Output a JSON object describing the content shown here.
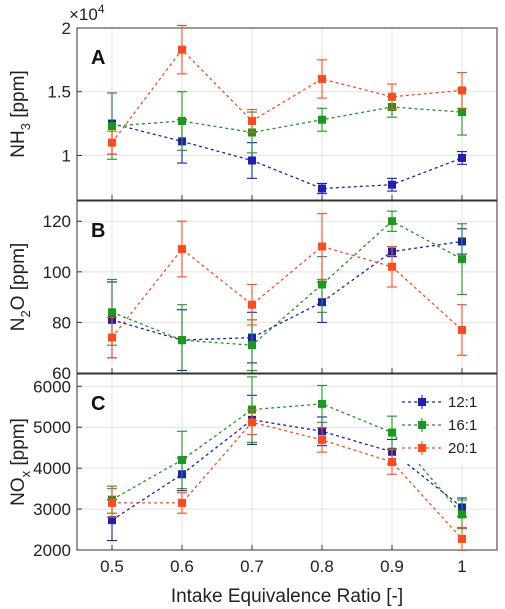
{
  "chart_data": {
    "type": "line",
    "xlabel": "Intake Equivalence Ratio [-]",
    "x": [
      0.5,
      0.6,
      0.7,
      0.8,
      0.9,
      1
    ],
    "x_tick_labels": [
      "0.5",
      "0.6",
      "0.7",
      "0.8",
      "0.9",
      "1"
    ],
    "xlim": [
      0.45,
      1.05
    ],
    "legend": {
      "placement": "top-right of panel C",
      "entries": [
        "12:1",
        "16:1",
        "20:1"
      ]
    },
    "series_colors": {
      "12:1": "#1f1fb4",
      "16:1": "#1a9a1a",
      "20:1": "#ff4a1c"
    },
    "grid": true,
    "panels": [
      {
        "letter": "A",
        "ylabel_main": "NH",
        "ylabel_sub": "3",
        "ylabel_tail": " [ppm]",
        "exponent_label": "×10",
        "exponent_power": "4",
        "ylim": [
          0.65,
          2.0
        ],
        "yticks": [
          1,
          1.5,
          2
        ],
        "ytick_labels": [
          "1",
          "1.5",
          "2"
        ],
        "series": [
          {
            "name": "12:1",
            "values": [
              1.25,
              1.11,
              0.96,
              0.74,
              0.77,
              0.98
            ],
            "errors": [
              0.24,
              0.17,
              0.14,
              0.04,
              0.05,
              0.05
            ]
          },
          {
            "name": "16:1",
            "values": [
              1.23,
              1.27,
              1.18,
              1.28,
              1.38,
              1.34
            ],
            "errors": [
              0.26,
              0.23,
              0.16,
              0.09,
              0.08,
              0.18
            ]
          },
          {
            "name": "20:1",
            "values": [
              1.1,
              1.83,
              1.27,
              1.6,
              1.46,
              1.51
            ],
            "errors": [
              0.09,
              0.19,
              0.09,
              0.15,
              0.1,
              0.14
            ]
          }
        ]
      },
      {
        "letter": "B",
        "ylabel_main": "N",
        "ylabel_sub": "2",
        "ylabel_tail": "O [ppm]",
        "ylim": [
          60,
          128
        ],
        "yticks": [
          60,
          80,
          100,
          120
        ],
        "ytick_labels": [
          "60",
          "80",
          "100",
          "120"
        ],
        "series": [
          {
            "name": "12:1",
            "values": [
              81,
              73,
              74,
              88,
              108,
              112
            ],
            "errors": [
              15,
              12,
              10,
              8,
              2,
              5
            ]
          },
          {
            "name": "16:1",
            "values": [
              84,
              73,
              71,
              95,
              120,
              105
            ],
            "errors": [
              13,
              14,
              10,
              11,
              4,
              14
            ]
          },
          {
            "name": "20:1",
            "values": [
              74,
              109,
              87,
              110,
              102,
              77
            ],
            "errors": [
              8,
              11,
              8,
              13,
              8,
              10
            ]
          }
        ]
      },
      {
        "letter": "C",
        "ylabel_main": "NO",
        "ylabel_sub": "x",
        "ylabel_tail": " [ppm]",
        "ylim": [
          2000,
          6300
        ],
        "yticks": [
          2000,
          3000,
          4000,
          5000,
          6000
        ],
        "ytick_labels": [
          "2000",
          "3000",
          "4000",
          "5000",
          "6000"
        ],
        "series": [
          {
            "name": "12:1",
            "values": [
              2730,
              3850,
              5180,
              4900,
              4400,
              3040
            ],
            "errors": [
              500,
              400,
              600,
              350,
              300,
              230
            ]
          },
          {
            "name": "16:1",
            "values": [
              3230,
              4200,
              5430,
              5570,
              4870,
              2870
            ],
            "errors": [
              330,
              700,
              800,
              450,
              400,
              350
            ]
          },
          {
            "name": "20:1",
            "values": [
              3150,
              3150,
              5120,
              4690,
              4150,
              2270
            ],
            "errors": [
              350,
              250,
              300,
              300,
              300,
              280
            ]
          }
        ]
      }
    ]
  }
}
